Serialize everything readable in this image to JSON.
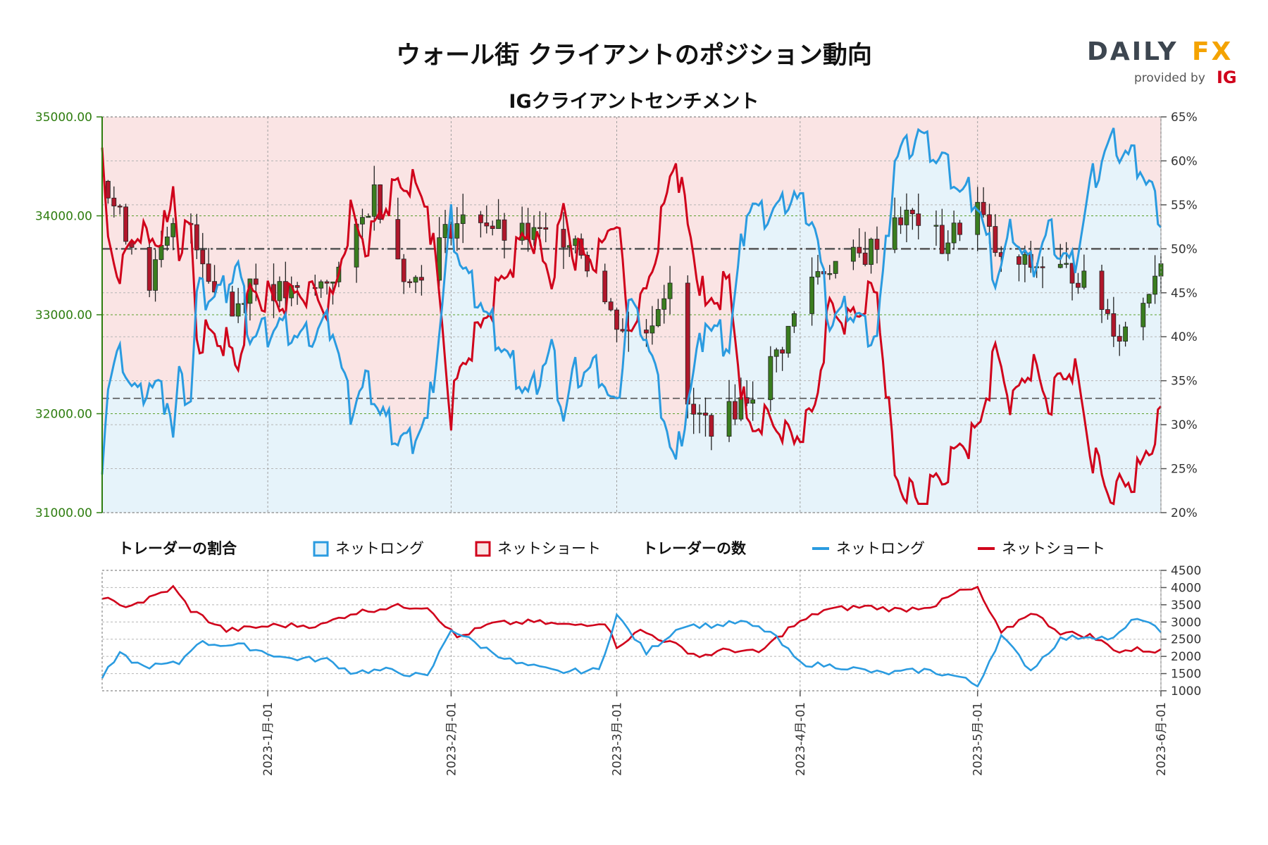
{
  "header": {
    "title": "ウォール街 クライアントのポジション動向",
    "subtitle": "IGクライアントセンチメント"
  },
  "logo": {
    "daily": "DAILY",
    "fx": "FX",
    "provided_by": "provided by",
    "ig": "IG"
  },
  "legend": {
    "ratio_label": "トレーダーの割合",
    "net_long": "ネットロング",
    "net_short": "ネットショート",
    "count_label": "トレーダーの数",
    "net_long_2": "ネットロング",
    "net_short_2": "ネットショート"
  },
  "colors": {
    "long": "#2a9be0",
    "short": "#d0021b",
    "long_fill": "#e6f3fa",
    "short_fill": "#fae4e4",
    "price_axis": "#2e7d0f",
    "up_candle": "#3a7d1f",
    "down_candle": "#b0172b",
    "fx_accent": "#f4a300",
    "logo_grey": "#3d4650"
  },
  "chart_data": [
    {
      "type": "candlestick",
      "title": "IGクライアントセンチメント",
      "x_range": [
        "2022-12-04",
        "2023-06-01"
      ],
      "y_left_ticks": [
        "35000.00",
        "34000.00",
        "33000.00",
        "32000.00",
        "31000.00"
      ],
      "y_left_range": [
        31000,
        35000
      ],
      "y_right_ticks": [
        "65%",
        "60%",
        "55%",
        "50%",
        "45%",
        "40%",
        "35%",
        "30%",
        "25%",
        "20%"
      ],
      "y_right_range": [
        20,
        65
      ],
      "reference_levels": [
        50,
        33
      ],
      "price_anchors": [
        [
          "2022-12-04",
          34350
        ],
        [
          "2022-12-12",
          33350
        ],
        [
          "2022-12-18",
          34100
        ],
        [
          "2022-12-25",
          32900
        ],
        [
          "2022-12-29",
          33350
        ],
        [
          "2023-01-04",
          33200
        ],
        [
          "2023-01-08",
          33200
        ],
        [
          "2023-01-14",
          33500
        ],
        [
          "2023-01-19",
          34250
        ],
        [
          "2023-01-25",
          33300
        ],
        [
          "2023-02-01",
          33900
        ],
        [
          "2023-02-06",
          34000
        ],
        [
          "2023-02-10",
          33800
        ],
        [
          "2023-02-17",
          33800
        ],
        [
          "2023-02-22",
          33800
        ],
        [
          "2023-02-28",
          33000
        ],
        [
          "2023-03-05",
          32700
        ],
        [
          "2023-03-10",
          33400
        ],
        [
          "2023-03-13",
          32000
        ],
        [
          "2023-03-17",
          31900
        ],
        [
          "2023-03-20",
          32000
        ],
        [
          "2023-03-25",
          32300
        ],
        [
          "2023-03-29",
          32700
        ],
        [
          "2023-04-03",
          33400
        ],
        [
          "2023-04-06",
          33500
        ],
        [
          "2023-04-12",
          33600
        ],
        [
          "2023-04-17",
          34000
        ],
        [
          "2023-04-22",
          33950
        ],
        [
          "2023-04-25",
          33700
        ],
        [
          "2023-05-01",
          34100
        ],
        [
          "2023-05-05",
          33500
        ],
        [
          "2023-05-09",
          33500
        ],
        [
          "2023-05-12",
          33500
        ],
        [
          "2023-05-18",
          33400
        ],
        [
          "2023-05-22",
          33100
        ],
        [
          "2023-05-25",
          32800
        ],
        [
          "2023-05-28",
          33000
        ],
        [
          "2023-06-01",
          33600
        ]
      ],
      "net_long_pct": [
        [
          "2022-12-04",
          26
        ],
        [
          "2022-12-05",
          35
        ],
        [
          "2022-12-07",
          38
        ],
        [
          "2022-12-10",
          33
        ],
        [
          "2022-12-12",
          35
        ],
        [
          "2022-12-15",
          33
        ],
        [
          "2022-12-16",
          29
        ],
        [
          "2022-12-17",
          35
        ],
        [
          "2022-12-19",
          33
        ],
        [
          "2022-12-20",
          45
        ],
        [
          "2022-12-24",
          45
        ],
        [
          "2022-12-27",
          48
        ],
        [
          "2022-12-29",
          40
        ],
        [
          "2022-12-31",
          41
        ],
        [
          "2023-01-04",
          41
        ],
        [
          "2023-01-06",
          40
        ],
        [
          "2023-01-12",
          41
        ],
        [
          "2023-01-15",
          32
        ],
        [
          "2023-01-18",
          35
        ],
        [
          "2023-01-21",
          30
        ],
        [
          "2023-01-24",
          28
        ],
        [
          "2023-01-28",
          30
        ],
        [
          "2023-01-31",
          47
        ],
        [
          "2023-02-01",
          53
        ],
        [
          "2023-02-03",
          48
        ],
        [
          "2023-02-09",
          40
        ],
        [
          "2023-02-14",
          33
        ],
        [
          "2023-02-18",
          39
        ],
        [
          "2023-02-20",
          31
        ],
        [
          "2023-02-22",
          36
        ],
        [
          "2023-02-26",
          36
        ],
        [
          "2023-03-01",
          31
        ],
        [
          "2023-03-03",
          44
        ],
        [
          "2023-03-06",
          40
        ],
        [
          "2023-03-08",
          34
        ],
        [
          "2023-03-11",
          25
        ],
        [
          "2023-03-13",
          33
        ],
        [
          "2023-03-16",
          42
        ],
        [
          "2023-03-20",
          39
        ],
        [
          "2023-03-23",
          55
        ],
        [
          "2023-03-26",
          54
        ],
        [
          "2023-03-31",
          56
        ],
        [
          "2023-04-03",
          54
        ],
        [
          "2023-04-06",
          42
        ],
        [
          "2023-04-09",
          43
        ],
        [
          "2023-04-14",
          40
        ],
        [
          "2023-04-17",
          60
        ],
        [
          "2023-04-21",
          63
        ],
        [
          "2023-04-25",
          60
        ],
        [
          "2023-04-28",
          57
        ],
        [
          "2023-05-01",
          55
        ],
        [
          "2023-05-04",
          47
        ],
        [
          "2023-05-07",
          52
        ],
        [
          "2023-05-10",
          48
        ],
        [
          "2023-05-13",
          52
        ],
        [
          "2023-05-17",
          48
        ],
        [
          "2023-05-21",
          59
        ],
        [
          "2023-05-24",
          62
        ],
        [
          "2023-05-28",
          60
        ],
        [
          "2023-06-01",
          54
        ]
      ],
      "net_short_pct_note_fields": {
        "series": [
          "ネットロング",
          "ネットショート"
        ]
      }
    },
    {
      "type": "line",
      "title": "トレーダーの数",
      "y_ticks": [
        "4500",
        "4000",
        "3500",
        "3000",
        "2500",
        "2000",
        "1500",
        "1000"
      ],
      "y_range": [
        1000,
        4500
      ],
      "x_ticks": [
        "2023-1月-01",
        "2023-2月-01",
        "2023-3月-01",
        "2023-4月-01",
        "2023-5月-01",
        "2023-6月-01"
      ],
      "series": [
        {
          "name": "ネットロング",
          "values": [
            [
              "2022-12-04",
              1400
            ],
            [
              "2022-12-07",
              2050
            ],
            [
              "2022-12-11",
              1700
            ],
            [
              "2022-12-17",
              1800
            ],
            [
              "2022-12-20",
              2400
            ],
            [
              "2022-12-28",
              2300
            ],
            [
              "2023-01-04",
              1950
            ],
            [
              "2023-01-11",
              1900
            ],
            [
              "2023-01-15",
              1550
            ],
            [
              "2023-01-21",
              1600
            ],
            [
              "2023-01-28",
              1400
            ],
            [
              "2023-02-01",
              2800
            ],
            [
              "2023-02-06",
              2300
            ],
            [
              "2023-02-12",
              1800
            ],
            [
              "2023-02-19",
              1550
            ],
            [
              "2023-02-26",
              1600
            ],
            [
              "2023-03-01",
              3200
            ],
            [
              "2023-03-06",
              2100
            ],
            [
              "2023-03-12",
              2900
            ],
            [
              "2023-03-18",
              2900
            ],
            [
              "2023-03-22",
              3000
            ],
            [
              "2023-03-27",
              2700
            ],
            [
              "2023-04-01",
              1800
            ],
            [
              "2023-04-08",
              1700
            ],
            [
              "2023-04-15",
              1500
            ],
            [
              "2023-04-22",
              1600
            ],
            [
              "2023-04-28",
              1400
            ],
            [
              "2023-05-01",
              1150
            ],
            [
              "2023-05-05",
              2600
            ],
            [
              "2023-05-10",
              1600
            ],
            [
              "2023-05-15",
              2500
            ],
            [
              "2023-05-20",
              2600
            ],
            [
              "2023-05-24",
              2500
            ],
            [
              "2023-05-28",
              3150
            ],
            [
              "2023-06-01",
              2700
            ]
          ]
        },
        {
          "name": "ネットショート",
          "values": [
            [
              "2022-12-04",
              3750
            ],
            [
              "2022-12-07",
              3450
            ],
            [
              "2022-12-11",
              3600
            ],
            [
              "2022-12-16",
              4000
            ],
            [
              "2022-12-19",
              3350
            ],
            [
              "2022-12-25",
              2750
            ],
            [
              "2023-01-02",
              2900
            ],
            [
              "2023-01-10",
              2900
            ],
            [
              "2023-01-15",
              3250
            ],
            [
              "2023-01-22",
              3450
            ],
            [
              "2023-01-28",
              3450
            ],
            [
              "2023-02-02",
              2550
            ],
            [
              "2023-02-08",
              2950
            ],
            [
              "2023-02-15",
              3000
            ],
            [
              "2023-02-21",
              2900
            ],
            [
              "2023-02-27",
              3000
            ],
            [
              "2023-03-01",
              2300
            ],
            [
              "2023-03-05",
              2750
            ],
            [
              "2023-03-10",
              2400
            ],
            [
              "2023-03-15",
              2000
            ],
            [
              "2023-03-20",
              2200
            ],
            [
              "2023-03-25",
              2100
            ],
            [
              "2023-03-30",
              2800
            ],
            [
              "2023-04-05",
              3350
            ],
            [
              "2023-04-12",
              3450
            ],
            [
              "2023-04-18",
              3350
            ],
            [
              "2023-04-24",
              3500
            ],
            [
              "2023-04-28",
              3900
            ],
            [
              "2023-05-01",
              3950
            ],
            [
              "2023-05-05",
              2650
            ],
            [
              "2023-05-10",
              3300
            ],
            [
              "2023-05-15",
              2700
            ],
            [
              "2023-05-20",
              2600
            ],
            [
              "2023-05-25",
              2150
            ],
            [
              "2023-05-28",
              2200
            ],
            [
              "2023-06-01",
              2150
            ]
          ]
        }
      ]
    }
  ]
}
